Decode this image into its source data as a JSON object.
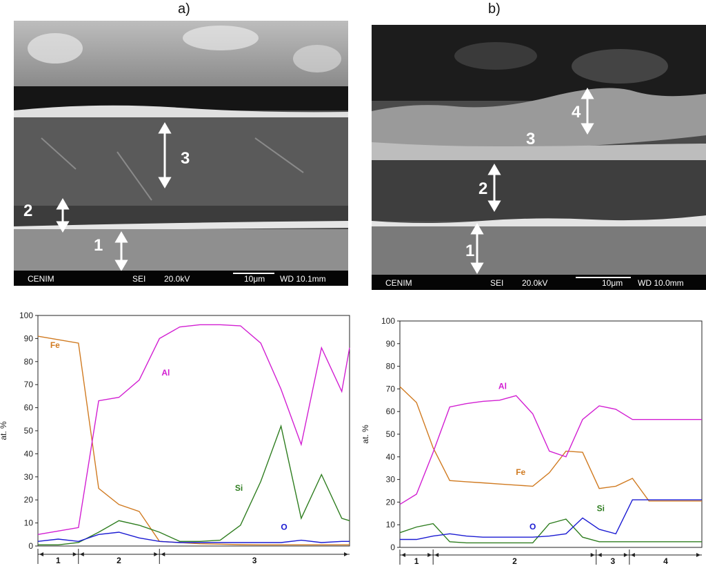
{
  "panels": {
    "a_label": "a)",
    "b_label": "b)"
  },
  "sem_a": {
    "footer": {
      "brand": "CENIM",
      "mode": "SEI",
      "kv": "20.0kV",
      "scale": "10μm",
      "wd": "WD 10.1mm"
    },
    "markers": [
      "1",
      "2",
      "3"
    ]
  },
  "sem_b": {
    "footer": {
      "brand": "CENIM",
      "mode": "SEI",
      "kv": "20.0kV",
      "scale": "10μm",
      "wd": "WD 10.0mm"
    },
    "markers": [
      "1",
      "2",
      "3",
      "4"
    ]
  },
  "colors": {
    "Fe": "#d07a20",
    "Al": "#d21ed2",
    "Si": "#2e7d1f",
    "O": "#1a1ad2"
  },
  "chart_data": [
    {
      "type": "line",
      "ylabel": "at. %",
      "ylim": [
        0,
        100
      ],
      "yticks": [
        0,
        10,
        20,
        30,
        40,
        50,
        60,
        70,
        80,
        90,
        100
      ],
      "xlim": [
        0,
        20
      ],
      "x": [
        0,
        1.3,
        2.6,
        3.9,
        5.2,
        6.5,
        7.8,
        9.1,
        10.4,
        11.7,
        13,
        14.3,
        15.6,
        16.9,
        18.2,
        19.5,
        20
      ],
      "series": [
        {
          "name": "Fe",
          "values": [
            91,
            89.5,
            88,
            25,
            18,
            15,
            2,
            1.5,
            1,
            0.8,
            0.6,
            0.5,
            0.5,
            0.5,
            0.5,
            0.5,
            0.5
          ]
        },
        {
          "name": "Al",
          "values": [
            5,
            6.5,
            8,
            63,
            64.5,
            72,
            90,
            95,
            96,
            96,
            95.5,
            88,
            68,
            44,
            86,
            67,
            86
          ]
        },
        {
          "name": "Si",
          "values": [
            0.5,
            0.5,
            1.5,
            6,
            11,
            9,
            6,
            2,
            2,
            2.5,
            9,
            28,
            52,
            12,
            31,
            12,
            11
          ]
        },
        {
          "name": "O",
          "values": [
            2,
            3,
            2,
            5,
            6,
            3.5,
            2,
            1.5,
            1.5,
            1.5,
            1.5,
            1.5,
            1.5,
            2.5,
            1.5,
            2,
            2
          ]
        }
      ],
      "zones": [
        {
          "label": "1",
          "from": 0,
          "to": 2.6
        },
        {
          "label": "2",
          "from": 2.6,
          "to": 7.8
        },
        {
          "label": "3",
          "from": 7.8,
          "to": 20
        }
      ]
    },
    {
      "type": "line",
      "ylabel": "at. %",
      "ylim": [
        0,
        100
      ],
      "yticks": [
        0,
        10,
        20,
        30,
        40,
        50,
        60,
        70,
        80,
        90,
        100
      ],
      "xlim": [
        0,
        20
      ],
      "x": [
        0,
        1.1,
        2.2,
        3.3,
        4.4,
        5.5,
        6.6,
        7.7,
        8.8,
        9.9,
        11,
        12.1,
        13.2,
        14.3,
        15.4,
        16.5,
        17.6,
        18.7,
        20
      ],
      "series": [
        {
          "name": "Fe",
          "values": [
            71,
            64,
            44,
            29.5,
            29,
            28.5,
            28,
            27.5,
            27,
            33,
            42.5,
            42,
            26,
            27,
            30.5,
            20.5,
            20.5,
            20.5,
            20.5
          ]
        },
        {
          "name": "Al",
          "values": [
            19,
            23.5,
            42,
            62,
            63.5,
            64.5,
            65,
            67,
            59,
            42.5,
            40,
            56.5,
            62.5,
            61,
            56.5,
            56.5,
            56.5,
            56.5,
            56.5
          ]
        },
        {
          "name": "Si",
          "values": [
            6.5,
            9,
            10.5,
            2.5,
            2,
            2,
            2,
            2,
            2,
            10.5,
            12.5,
            4.5,
            2.5,
            2.5,
            2.5,
            2.5,
            2.5,
            2.5,
            2.5
          ]
        },
        {
          "name": "O",
          "values": [
            3.5,
            3.5,
            5,
            6,
            5,
            4.5,
            4.5,
            4.5,
            4.5,
            5,
            6,
            13,
            8,
            6,
            21,
            21,
            21,
            21,
            21
          ]
        }
      ],
      "zones": [
        {
          "label": "1",
          "from": 0,
          "to": 2.2
        },
        {
          "label": "2",
          "from": 2.2,
          "to": 13
        },
        {
          "label": "3",
          "from": 13,
          "to": 15.2
        },
        {
          "label": "4",
          "from": 15.2,
          "to": 20
        }
      ]
    }
  ]
}
